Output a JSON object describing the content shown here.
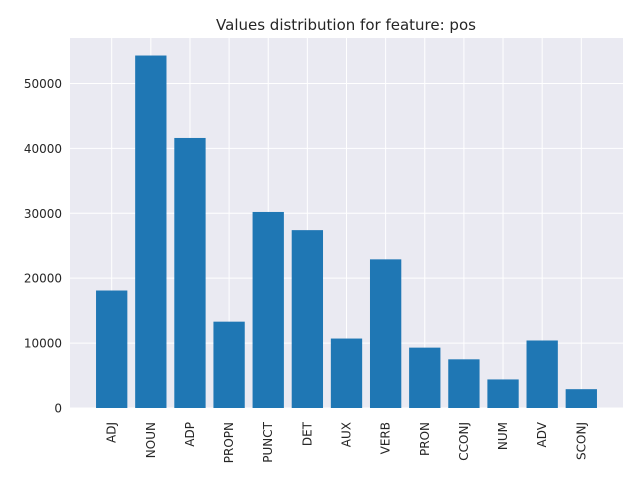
{
  "chart_data": {
    "type": "bar",
    "title": "Values distribution for feature: pos",
    "xlabel": "",
    "ylabel": "",
    "categories": [
      "ADJ",
      "NOUN",
      "ADP",
      "PROPN",
      "PUNCT",
      "DET",
      "AUX",
      "VERB",
      "PRON",
      "CCONJ",
      "NUM",
      "ADV",
      "SCONJ"
    ],
    "values": [
      18100,
      54300,
      41600,
      13300,
      30200,
      27400,
      10700,
      22900,
      9300,
      7500,
      4400,
      10400,
      2900
    ],
    "ylim": [
      0,
      57000
    ],
    "yticks": [
      0,
      10000,
      20000,
      30000,
      40000,
      50000
    ],
    "grid": true,
    "bar_color": "#1f77b4",
    "background_color": "#eaeaf2",
    "grid_color": "#ffffff"
  }
}
